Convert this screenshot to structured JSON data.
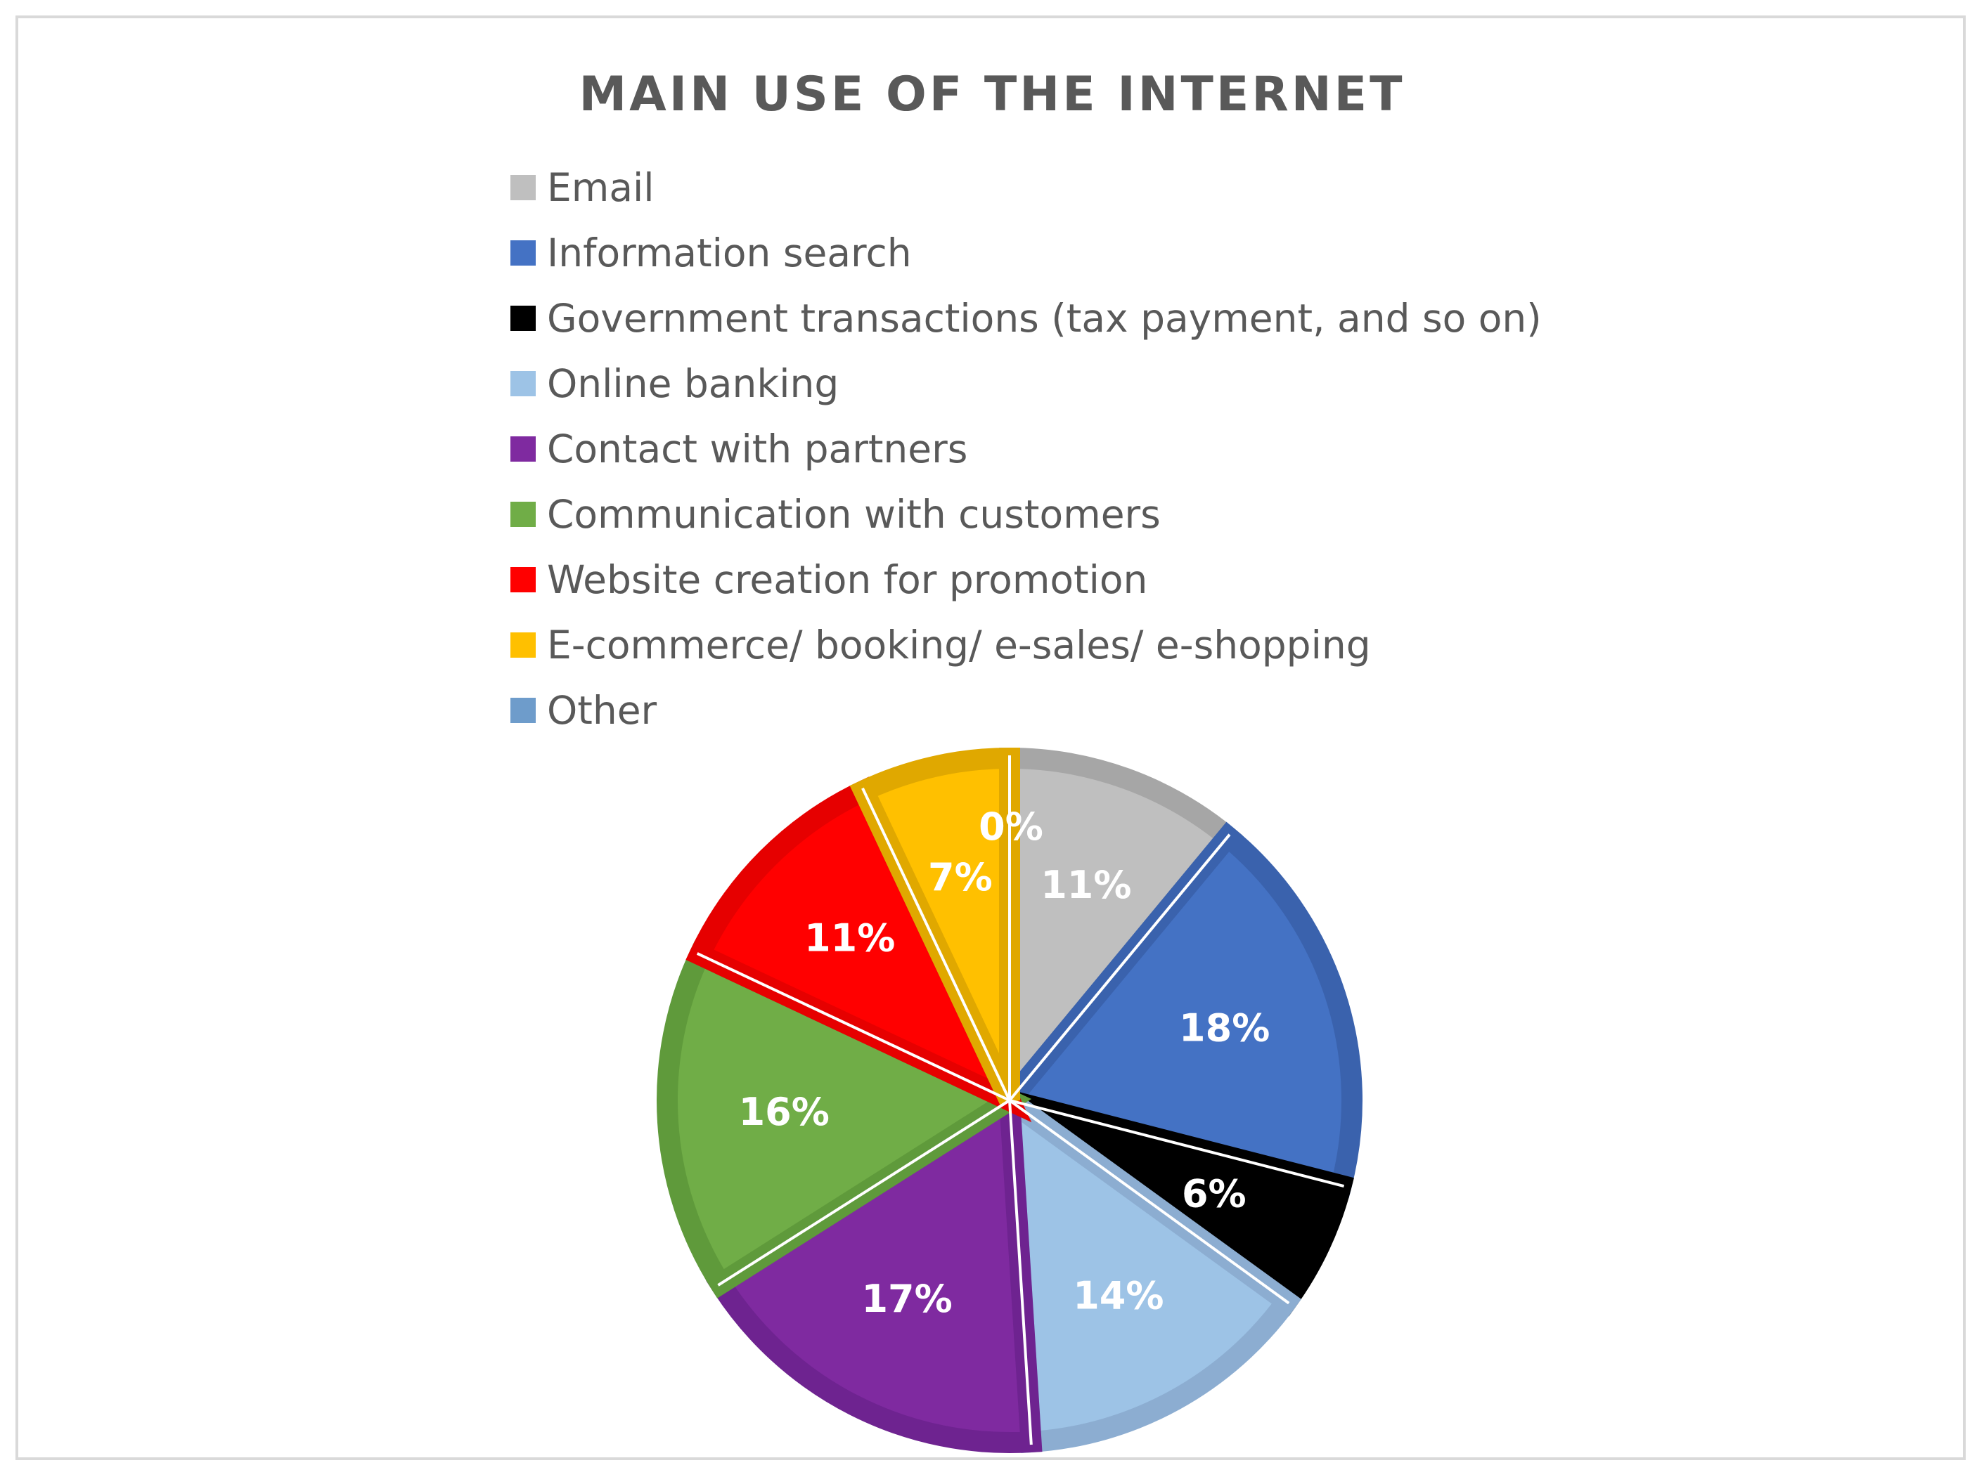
{
  "chart_data": {
    "type": "pie",
    "title": "MAIN USE OF THE INTERNET",
    "legend_position": "top",
    "categories": [
      "Email",
      "Information search",
      "Government transactions (tax payment, and so on)",
      "Online banking",
      "Contact with partners",
      "Communication with customers",
      "Website creation for promotion",
      "E-commerce/ booking/ e-sales/ e-shopping",
      "Other"
    ],
    "values": [
      11,
      18,
      6,
      14,
      17,
      16,
      11,
      7,
      0
    ],
    "data_labels": [
      "11%",
      "18%",
      "6%",
      "14%",
      "17%",
      "16%",
      "11%",
      "7%",
      "0%"
    ],
    "colors": [
      "#bfbfbf",
      "#4472c4",
      "#000000",
      "#9dc3e6",
      "#7f2aa0",
      "#70ad47",
      "#ff0000",
      "#ffc000",
      "#6e9ccb"
    ],
    "border_colors": [
      "#a6a6a6",
      "#3a62ad",
      "#000000",
      "#8cadd1",
      "#6e2390",
      "#5f9a3b",
      "#e60000",
      "#e0a800",
      "#5b8abb"
    ]
  }
}
